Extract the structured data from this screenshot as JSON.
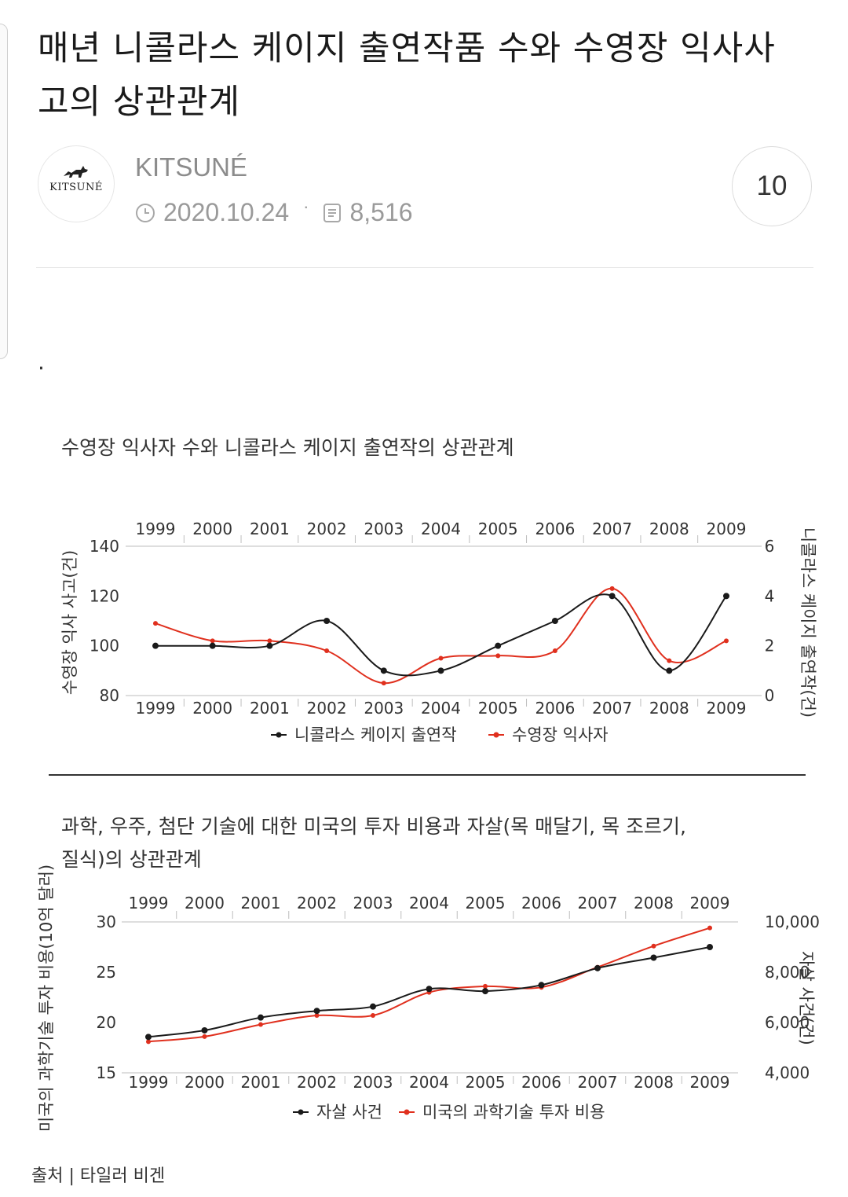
{
  "post": {
    "title": "매년 니콜라스 케이지 출연작품 수와 수영장 익사사고의 상관관계",
    "author": "KITSUNÉ",
    "avatar_text": "KITSUNÉ",
    "date": "2020.10.24",
    "views": "8,516",
    "comment_count": "10",
    "body_text": "."
  },
  "source": "출처 | 타일러 비겐",
  "colors": {
    "black_series": "#1a1a1a",
    "red_series": "#e0301e"
  },
  "chart_data": [
    {
      "type": "line",
      "title": "수영장 익사자 수와 니콜라스 케이지 출연작의 상관관계",
      "categories": [
        "1999",
        "2000",
        "2001",
        "2002",
        "2003",
        "2004",
        "2005",
        "2006",
        "2007",
        "2008",
        "2009"
      ],
      "left_axis": {
        "label": "수영장 익사 사고(건)",
        "ticks": [
          "140",
          "120",
          "100",
          "80"
        ],
        "range": [
          80,
          140
        ]
      },
      "right_axis": {
        "label": "니콜라스 케이지 출연작(건)",
        "ticks": [
          "6",
          "4",
          "2",
          "0"
        ],
        "range": [
          0,
          6
        ]
      },
      "series": [
        {
          "name": "니콜라스 케이지 출연작",
          "axis": "right",
          "color": "#1a1a1a",
          "values": [
            2,
            2,
            2,
            3,
            1,
            1,
            2,
            3,
            4,
            1,
            4
          ]
        },
        {
          "name": "수영장 익사자",
          "axis": "left",
          "color": "#e0301e",
          "values": [
            109,
            102,
            102,
            98,
            85,
            95,
            96,
            98,
            123,
            94,
            102
          ]
        }
      ]
    },
    {
      "type": "line",
      "title": "과학, 우주, 첨단 기술에 대한 미국의 투자 비용과 자살(목 매달기, 목 조르기, 질식)의 상관관계",
      "categories": [
        "1999",
        "2000",
        "2001",
        "2002",
        "2003",
        "2004",
        "2005",
        "2006",
        "2007",
        "2008",
        "2009"
      ],
      "left_axis": {
        "label": "미국의 과학기술 투자 비용(10억 달러)",
        "ticks": [
          "30",
          "25",
          "20",
          "15"
        ],
        "range": [
          15,
          30
        ]
      },
      "right_axis": {
        "label": "자살 사건(건)",
        "ticks": [
          "10,000",
          "8,000",
          "6,000",
          "4,000"
        ],
        "range": [
          4000,
          10000
        ]
      },
      "series": [
        {
          "name": "자살 사건",
          "axis": "right",
          "color": "#1a1a1a",
          "values": [
            5427,
            5688,
            6198,
            6462,
            6635,
            7336,
            7248,
            7491,
            8161,
            8578,
            9000
          ]
        },
        {
          "name": "미국의 과학기술 투자 비용",
          "axis": "left",
          "color": "#e0301e",
          "values": [
            18.1,
            18.6,
            19.8,
            20.7,
            20.7,
            23.0,
            23.6,
            23.5,
            25.5,
            27.6,
            29.4
          ]
        }
      ]
    }
  ]
}
